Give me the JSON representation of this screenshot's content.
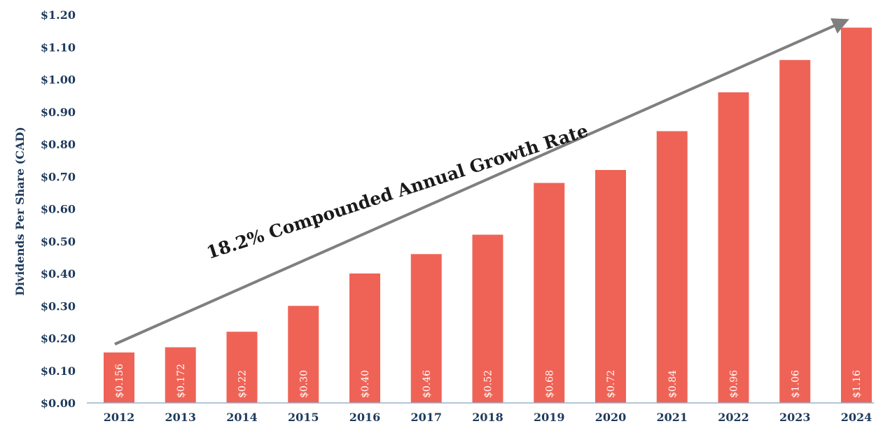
{
  "chart_data": {
    "type": "bar",
    "ylabel": "Dividends Per Share (CAD)",
    "xlabel": "",
    "ylim": [
      0,
      1.2
    ],
    "y_ticks": [
      "$0.00",
      "$0.10",
      "$0.20",
      "$0.30",
      "$0.40",
      "$0.50",
      "$0.60",
      "$0.70",
      "$0.80",
      "$0.90",
      "$1.00",
      "$1.10",
      "$1.20"
    ],
    "categories": [
      "2012",
      "2013",
      "2014",
      "2015",
      "2016",
      "2017",
      "2018",
      "2019",
      "2020",
      "2021",
      "2022",
      "2023",
      "2024"
    ],
    "values": [
      0.156,
      0.172,
      0.22,
      0.3,
      0.4,
      0.46,
      0.52,
      0.68,
      0.72,
      0.84,
      0.96,
      1.06,
      1.16
    ],
    "data_labels": [
      "$0.156",
      "$0.172",
      "$0.22",
      "$0.30",
      "$0.40",
      "$0.46",
      "$0.52",
      "$0.68",
      "$0.72",
      "$0.84",
      "$0.96",
      "$1.06",
      "$1.16"
    ],
    "annotation": "18.2% Compounded Annual Growth Rate",
    "grid": false,
    "legend": "none"
  },
  "colors": {
    "bar": "#ef6356",
    "axis_text": "#1f3b5c",
    "axis_line": "#9bb0c8",
    "arrow": "#7f7f7f",
    "data_label": "#ffffff"
  }
}
